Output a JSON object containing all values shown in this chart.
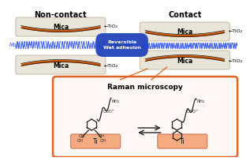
{
  "title_left": "Non-contact",
  "title_right": "Contact",
  "arrow_text1": "Reversible\nWet adhesion",
  "raman_title": "Raman microscopy",
  "label_mica": "Mica",
  "label_tio2": "←TiO₂",
  "label_mcfp": "Mcfp-1→",
  "bg_color": "#ffffff",
  "mica_fill": "#e8e4d8",
  "mica_edge": "#b8a888",
  "tio2_color": "#cc5500",
  "protein_color": "#3355ee",
  "arrow_color": "#2244bb",
  "raman_box_color": "#dd6622",
  "raman_bg": "#fff8f4",
  "ti_color": "#f5aa80",
  "ti_edge": "#cc7755",
  "bond_color": "#222222",
  "text_color": "#000000",
  "title_fontsize": 7.0,
  "label_fontsize": 5.5,
  "small_fontsize": 4.8,
  "tio2_fontsize": 4.5
}
